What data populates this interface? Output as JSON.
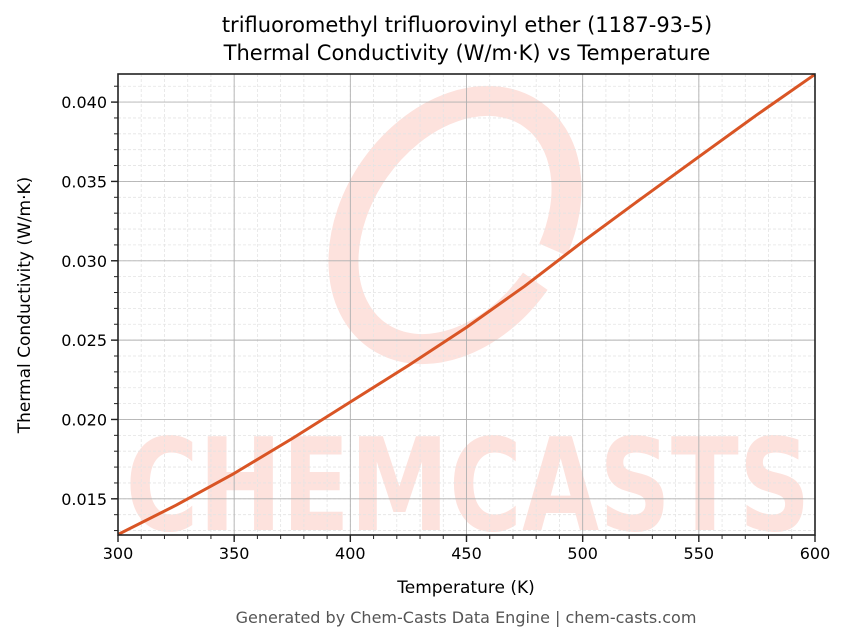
{
  "chart_data": {
    "type": "line",
    "title": "trifluoromethyl trifluorovinyl ether (1187-93-5)",
    "subtitle": "Thermal Conductivity (W/m·K) vs Temperature",
    "xlabel": "Temperature (K)",
    "ylabel": "Thermal Conductivity (W/m·K)",
    "xlim": [
      300,
      600
    ],
    "ylim": [
      0.01272,
      0.04177
    ],
    "x_ticks": [
      300,
      350,
      400,
      450,
      500,
      550,
      600
    ],
    "x_tick_labels": [
      "300",
      "350",
      "400",
      "450",
      "500",
      "550",
      "600"
    ],
    "y_ticks": [
      0.015,
      0.02,
      0.025,
      0.03,
      0.035,
      0.04
    ],
    "y_tick_labels": [
      "0.015",
      "0.020",
      "0.025",
      "0.030",
      "0.035",
      "0.040"
    ],
    "grid": true,
    "minor_grid": true,
    "legend": null,
    "series": [
      {
        "name": "Thermal Conductivity",
        "color": "#d95525",
        "x": [
          300,
          325,
          350,
          375,
          400,
          425,
          450,
          475,
          500,
          525,
          550,
          575,
          600
        ],
        "values": [
          0.01275,
          0.0146,
          0.0166,
          0.0188,
          0.0211,
          0.0234,
          0.0258,
          0.0284,
          0.0312,
          0.0339,
          0.03655,
          0.0392,
          0.04175
        ]
      }
    ]
  },
  "watermark": {
    "text": "CHEMCASTS",
    "color": "#fde2dd"
  },
  "footer": "Generated by Chem-Casts Data Engine | chem-casts.com"
}
